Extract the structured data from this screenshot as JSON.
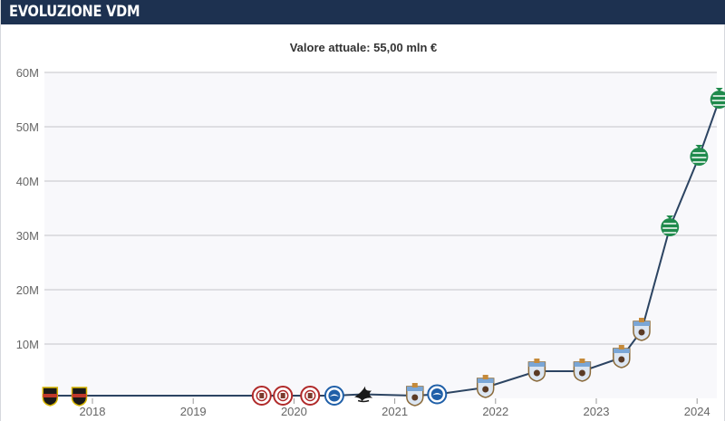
{
  "header": {
    "title": "EVOLUZIONE VDM"
  },
  "chart_data": {
    "type": "line",
    "subtitle": "Valore attuale: 55,00 mln €",
    "ylim": [
      0,
      60
    ],
    "yticks": [
      10,
      20,
      30,
      40,
      50,
      60
    ],
    "ytick_labels": [
      "10M",
      "20M",
      "30M",
      "40M",
      "50M",
      "60M"
    ],
    "xticks": [
      2018,
      2019,
      2020,
      2021,
      2022,
      2023,
      2024
    ],
    "xtick_labels": [
      "2018",
      "2019",
      "2020",
      "2021",
      "2022",
      "2023",
      "2024"
    ],
    "grid": true,
    "line_color": "#2c4462",
    "series": [
      {
        "points": [
          {
            "x": 2017.58,
            "y": 0.5,
            "club": "black-yellow-shield"
          },
          {
            "x": 2017.87,
            "y": 0.5,
            "club": "black-yellow-shield"
          },
          {
            "x": 2019.68,
            "y": 0.5,
            "club": "st-pauli"
          },
          {
            "x": 2019.89,
            "y": 0.5,
            "club": "st-pauli"
          },
          {
            "x": 2020.16,
            "y": 0.5,
            "club": "st-pauli"
          },
          {
            "x": 2020.4,
            "y": 0.5,
            "club": "brighton"
          },
          {
            "x": 2020.69,
            "y": 0.75,
            "club": "swansea"
          },
          {
            "x": 2021.2,
            "y": 0.5,
            "club": "coventry"
          },
          {
            "x": 2021.42,
            "y": 0.75,
            "club": "brighton"
          },
          {
            "x": 2021.9,
            "y": 2,
            "club": "coventry"
          },
          {
            "x": 2022.41,
            "y": 5,
            "club": "coventry"
          },
          {
            "x": 2022.86,
            "y": 5,
            "club": "coventry"
          },
          {
            "x": 2023.25,
            "y": 7.5,
            "club": "coventry"
          },
          {
            "x": 2023.45,
            "y": 12.5,
            "club": "coventry"
          },
          {
            "x": 2023.73,
            "y": 31.5,
            "club": "sporting"
          },
          {
            "x": 2024.02,
            "y": 44.5,
            "club": "sporting"
          },
          {
            "x": 2024.22,
            "y": 55,
            "club": "sporting"
          }
        ]
      }
    ]
  }
}
